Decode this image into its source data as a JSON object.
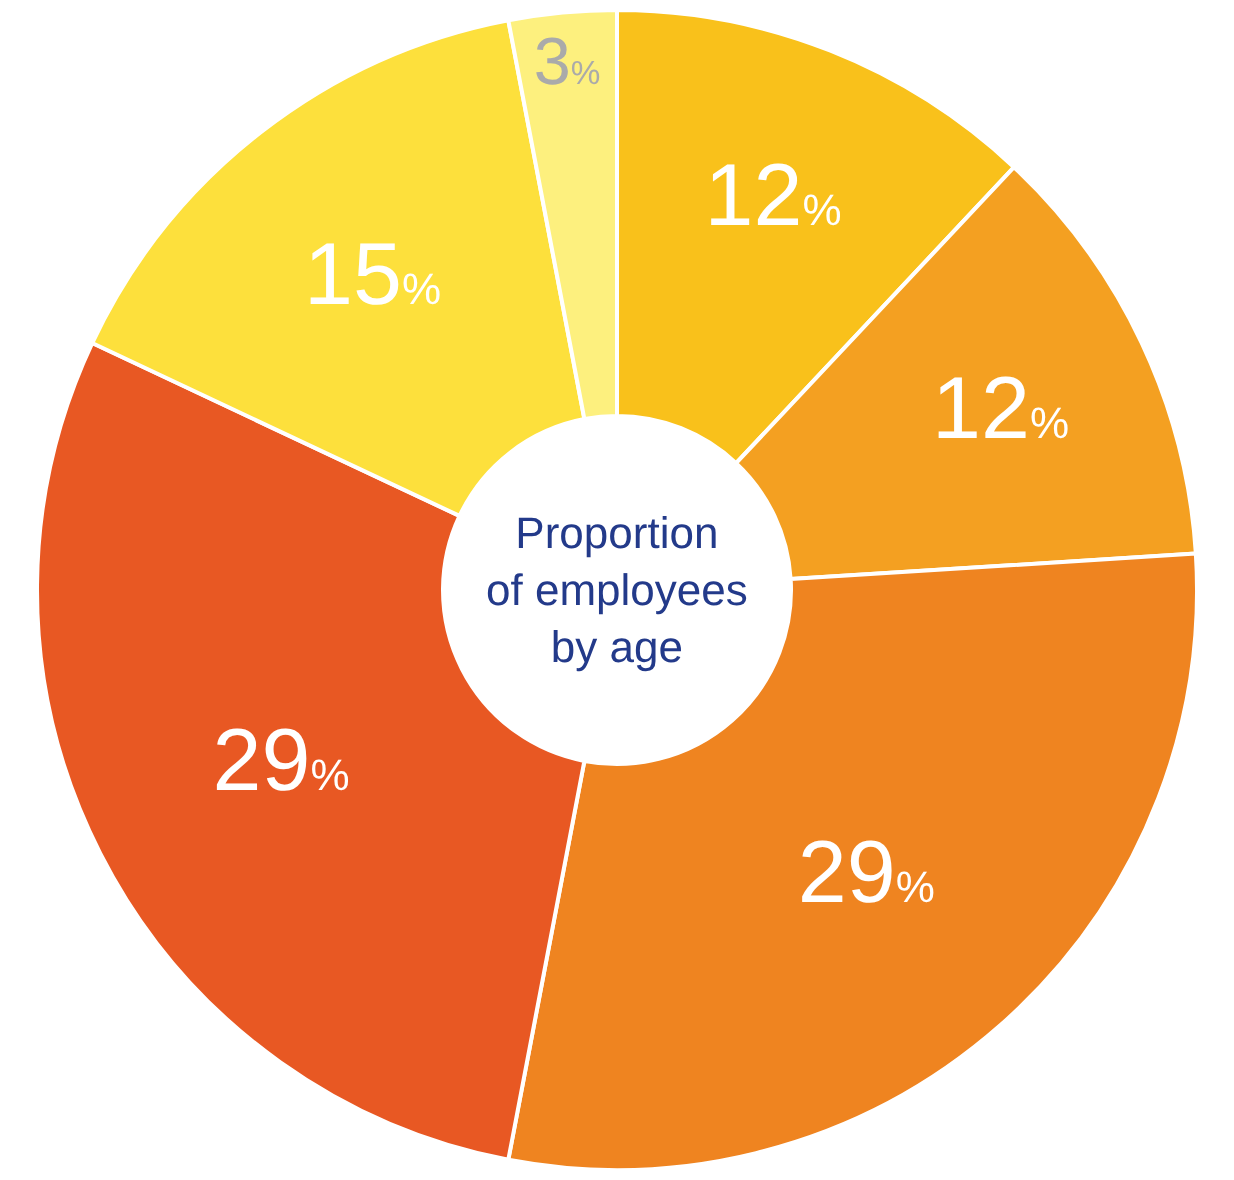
{
  "chart_data": {
    "type": "donut",
    "title": "Proportion of employees by age",
    "categories": [
      null,
      null,
      null,
      null,
      null,
      null
    ],
    "values": [
      12,
      12,
      29,
      29,
      15,
      3
    ],
    "colors": [
      "#f9c11b",
      "#f4a021",
      "#ef8420",
      "#e85823",
      "#fde03c",
      "#fdf07e"
    ],
    "value_labels": [
      "12%",
      "12%",
      "29%",
      "29%",
      "15%",
      "3%"
    ],
    "legend": false
  }
}
